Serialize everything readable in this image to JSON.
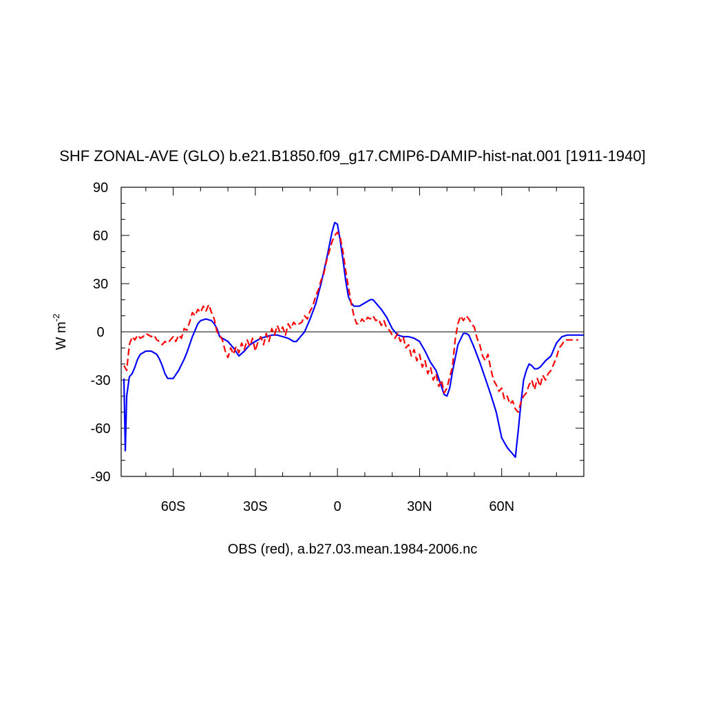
{
  "chart_data": {
    "type": "line",
    "title": "SHF ZONAL-AVE (GLO) b.e21.B1850.f09_g17.CMIP6-DAMIP-hist-nat.001 [1911-1940]",
    "xlabel": "OBS (red), a.b27.03.mean.1984-2006.nc",
    "ylabel": "W m",
    "ylabel_superscript": "-2",
    "xlim": [
      -79,
      90
    ],
    "ylim": [
      -90,
      90
    ],
    "x_ticks": [
      {
        "value": -60,
        "label": "60S"
      },
      {
        "value": -30,
        "label": "30S"
      },
      {
        "value": 0,
        "label": "0"
      },
      {
        "value": 30,
        "label": "30N"
      },
      {
        "value": 60,
        "label": "60N"
      }
    ],
    "y_ticks": [
      {
        "value": 90,
        "label": "90"
      },
      {
        "value": 60,
        "label": "60"
      },
      {
        "value": 30,
        "label": "30"
      },
      {
        "value": 0,
        "label": "0"
      },
      {
        "value": -30,
        "label": "-30"
      },
      {
        "value": -60,
        "label": "-60"
      },
      {
        "value": -90,
        "label": "-90"
      }
    ],
    "reference_line": 0,
    "series": [
      {
        "color": "#0000ff",
        "dash": "solid",
        "x": [
          -78,
          -77.5,
          -77,
          -76,
          -75,
          -74,
          -73,
          -72,
          -70,
          -68,
          -66,
          -65,
          -64,
          -63,
          -62,
          -60,
          -58,
          -56,
          -55,
          -54,
          -53,
          -52,
          -51,
          -50,
          -49,
          -48,
          -47,
          -46,
          -45,
          -44,
          -43,
          -42,
          -40,
          -38,
          -36,
          -34,
          -32,
          -30,
          -28,
          -26,
          -24,
          -22,
          -20,
          -18,
          -16,
          -15,
          -14,
          -12,
          -10,
          -8,
          -6,
          -4,
          -2,
          -1,
          0,
          1,
          2,
          3,
          4,
          5,
          6,
          8,
          10,
          12,
          13,
          14,
          16,
          18,
          20,
          22,
          24,
          26,
          28,
          30,
          32,
          34,
          36,
          38,
          39,
          40,
          41,
          42,
          44,
          46,
          47,
          48,
          49,
          50,
          52,
          54,
          56,
          58,
          60,
          62,
          63,
          64,
          65,
          66,
          67,
          68,
          69,
          70,
          71,
          72,
          73,
          74,
          75,
          76,
          78,
          80,
          82,
          84,
          86,
          88,
          90
        ],
        "y": [
          -29,
          -74,
          -40,
          -28,
          -26,
          -22,
          -17,
          -14,
          -12,
          -12,
          -14,
          -17,
          -21,
          -26,
          -29,
          -29,
          -24,
          -17,
          -13,
          -8,
          -3,
          1,
          5,
          7,
          7.5,
          8,
          7.5,
          7,
          5,
          2,
          -3,
          -4,
          -6,
          -10,
          -15,
          -12,
          -8,
          -6,
          -4,
          -3,
          -2,
          -2,
          -3,
          -4,
          -6,
          -6,
          -4,
          0,
          8,
          17,
          30,
          45,
          62,
          68,
          67,
          57,
          45,
          32,
          22,
          18,
          16,
          16,
          18,
          20,
          20,
          18,
          14,
          9,
          2,
          -2,
          -3,
          -3,
          -4,
          -6,
          -12,
          -19,
          -24,
          -34,
          -39,
          -40,
          -35,
          -25,
          -8,
          -1,
          -1,
          -2,
          -6,
          -10,
          -19,
          -29,
          -39,
          -50,
          -66,
          -72,
          -74,
          -76,
          -78,
          -62,
          -45,
          -30,
          -24,
          -20,
          -21,
          -23,
          -23,
          -22,
          -20,
          -18,
          -15,
          -7,
          -3,
          -2,
          -2,
          -2,
          -2
        ]
      },
      {
        "color": "#ff0000",
        "dash": "dashed",
        "x": [
          -78,
          -77,
          -76,
          -75,
          -74,
          -73,
          -72,
          -71,
          -70,
          -69,
          -68,
          -67,
          -66,
          -65,
          -64,
          -63,
          -62,
          -61,
          -60,
          -59,
          -58,
          -57,
          -56,
          -55,
          -54,
          -53,
          -52,
          -51,
          -50,
          -49,
          -48,
          -47,
          -46,
          -45,
          -44,
          -43,
          -42,
          -41,
          -40,
          -39,
          -38,
          -37,
          -36,
          -35,
          -34,
          -33,
          -32,
          -31,
          -30,
          -29,
          -28,
          -27,
          -26,
          -25,
          -24,
          -23,
          -22,
          -21,
          -20,
          -19,
          -18,
          -17,
          -16,
          -15,
          -14,
          -13,
          -12,
          -11,
          -10,
          -9,
          -8,
          -7,
          -6,
          -5,
          -4,
          -3,
          -2,
          -1,
          0,
          1,
          2,
          3,
          4,
          5,
          6,
          7,
          8,
          9,
          10,
          11,
          12,
          13,
          14,
          15,
          16,
          17,
          18,
          19,
          20,
          21,
          22,
          23,
          24,
          25,
          26,
          27,
          28,
          29,
          30,
          31,
          32,
          33,
          34,
          35,
          36,
          37,
          38,
          39,
          40,
          41,
          42,
          43,
          44,
          45,
          46,
          47,
          48,
          49,
          50,
          51,
          52,
          53,
          54,
          55,
          56,
          57,
          58,
          59,
          60,
          61,
          62,
          63,
          64,
          65,
          66,
          67,
          68,
          69,
          70,
          71,
          72,
          73,
          74,
          75,
          76,
          77,
          78,
          79,
          80,
          81,
          82,
          83,
          84,
          85,
          86,
          87,
          88
        ],
        "y": [
          -21,
          -24,
          -8,
          -3,
          -5,
          -2,
          -4,
          -3,
          -1,
          -2,
          -3,
          -2,
          -5,
          -6,
          -8,
          -6,
          -7,
          -5,
          -3,
          -6,
          -2,
          -4,
          2,
          1,
          6,
          12,
          10,
          14,
          12,
          16,
          13,
          17,
          12,
          8,
          0,
          -2,
          -5,
          -12,
          -16,
          -10,
          -14,
          -9,
          -13,
          -7,
          -11,
          -5,
          -9,
          -4,
          -12,
          -6,
          -3,
          -8,
          -1,
          -6,
          2,
          -2,
          4,
          0,
          3,
          -2,
          5,
          2,
          6,
          4,
          5,
          6,
          10,
          8,
          13,
          16,
          22,
          26,
          32,
          36,
          44,
          50,
          56,
          60,
          62,
          59,
          50,
          38,
          28,
          18,
          10,
          5,
          5,
          8,
          6,
          9,
          8,
          10,
          7,
          8,
          4,
          7,
          2,
          1,
          -2,
          -4,
          -1,
          -6,
          -3,
          -10,
          -8,
          -15,
          -11,
          -18,
          -14,
          -22,
          -18,
          -26,
          -22,
          -30,
          -26,
          -34,
          -30,
          -38,
          -35,
          -28,
          -22,
          -5,
          5,
          10,
          7,
          10,
          8,
          5,
          3,
          -4,
          -8,
          -15,
          -18,
          -14,
          -23,
          -30,
          -33,
          -37,
          -35,
          -42,
          -40,
          -45,
          -43,
          -48,
          -50,
          -44,
          -40,
          -38,
          -33,
          -30,
          -36,
          -29,
          -34,
          -27,
          -30,
          -26,
          -24,
          -20,
          -16,
          -10,
          -8,
          -5,
          -5,
          -5,
          -5,
          -5,
          -5
        ]
      }
    ]
  }
}
